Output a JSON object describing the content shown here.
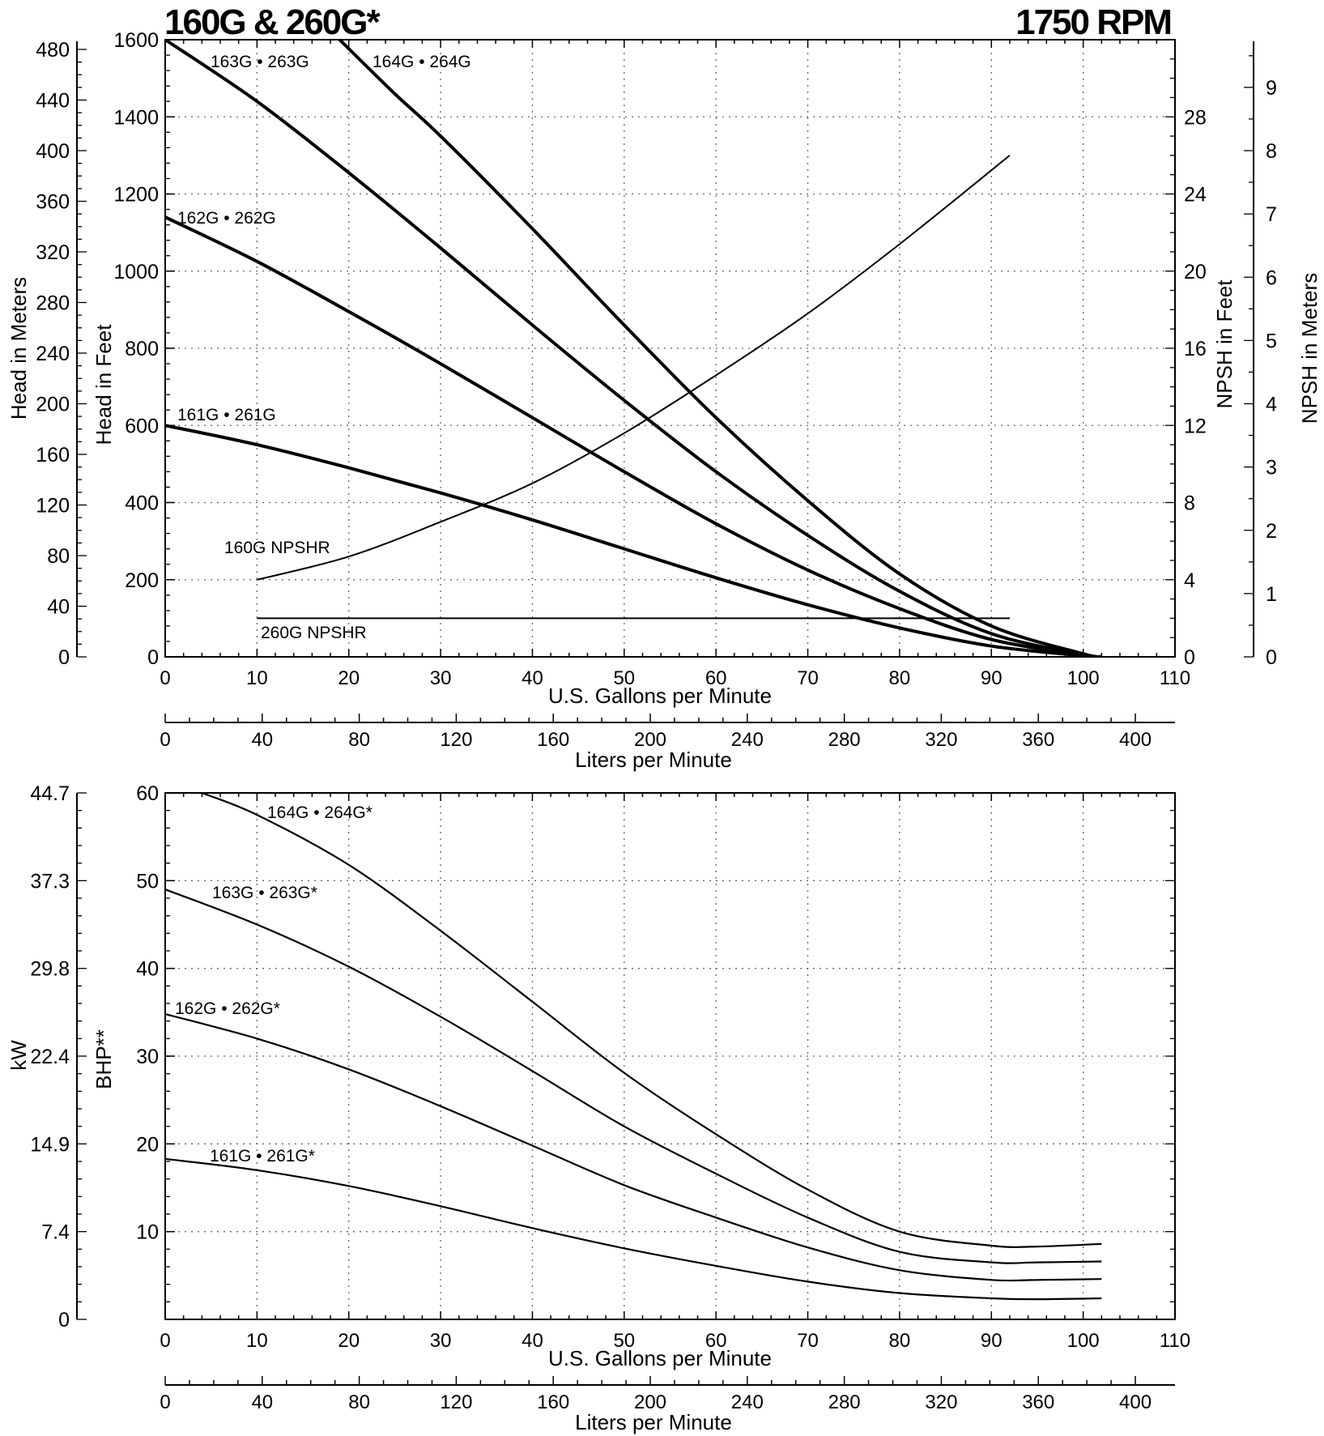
{
  "title_left": "160G & 260G*",
  "title_right": "1750 RPM",
  "chart_data": [
    {
      "type": "line",
      "name": "head-chart",
      "xlabel": "U.S. Gallons per Minute",
      "x2label": "Liters per Minute",
      "ylabel": "Head in Feet",
      "y_meters_label": "Head in Meters",
      "y_right_label": "NPSH in Feet",
      "y_right2_label": "NPSH in Meters",
      "xlim": [
        0,
        110
      ],
      "ylim": [
        0,
        1600
      ],
      "x_ticks": [
        0,
        10,
        20,
        30,
        40,
        50,
        60,
        70,
        80,
        90,
        100,
        110
      ],
      "y_ticks": [
        0,
        200,
        400,
        600,
        800,
        1000,
        1200,
        1400,
        1600
      ],
      "y_meters_ticks": [
        0,
        40,
        80,
        120,
        160,
        200,
        240,
        280,
        320,
        360,
        400,
        440,
        480
      ],
      "npsh_feet_ticks": [
        0,
        4,
        8,
        12,
        16,
        20,
        24,
        28
      ],
      "npsh_meters_ticks": [
        0,
        1,
        2,
        3,
        4,
        5,
        6,
        7,
        8,
        9
      ],
      "lpm_ticks": [
        0,
        40,
        80,
        120,
        160,
        200,
        240,
        280,
        320,
        360,
        400
      ],
      "grid": true,
      "series": [
        {
          "name": "161G • 261G",
          "weight": "heavy",
          "x": [
            0,
            10,
            20,
            30,
            40,
            50,
            60,
            70,
            80,
            90,
            100,
            102
          ],
          "y": [
            600,
            550,
            490,
            425,
            355,
            280,
            205,
            135,
            75,
            28,
            3,
            0
          ]
        },
        {
          "name": "162G • 262G",
          "weight": "heavy",
          "x": [
            0,
            10,
            20,
            30,
            40,
            50,
            60,
            70,
            80,
            90,
            100,
            102
          ],
          "y": [
            1140,
            1025,
            895,
            760,
            620,
            480,
            345,
            225,
            125,
            45,
            5,
            0
          ]
        },
        {
          "name": "163G • 263G",
          "weight": "heavy",
          "x": [
            0,
            10,
            20,
            30,
            40,
            50,
            60,
            70,
            80,
            90,
            100,
            102
          ],
          "y": [
            1600,
            1440,
            1255,
            1060,
            860,
            665,
            480,
            315,
            170,
            60,
            6,
            0
          ]
        },
        {
          "name": "164G • 264G",
          "weight": "heavy",
          "x": [
            19,
            25,
            30,
            40,
            50,
            60,
            70,
            80,
            90,
            100,
            102
          ],
          "y": [
            1600,
            1460,
            1350,
            1110,
            860,
            620,
            405,
            215,
            80,
            8,
            0
          ]
        },
        {
          "name": "160G NPSHR",
          "weight": "light",
          "axis": "npsh_feet",
          "x": [
            10,
            20,
            30,
            40,
            50,
            60,
            70,
            80,
            92
          ],
          "y": [
            4,
            5.2,
            7,
            9,
            11.6,
            14.6,
            17.8,
            21.4,
            26
          ]
        },
        {
          "name": "260G NPSHR",
          "weight": "light",
          "axis": "npsh_feet",
          "x": [
            10,
            92
          ],
          "y": [
            2,
            2
          ]
        }
      ]
    },
    {
      "type": "line",
      "name": "power-chart",
      "xlabel": "U.S. Gallons per Minute",
      "x2label": "Liters per Minute",
      "ylabel": "BHP**",
      "y_kw_label": "kW",
      "xlim": [
        0,
        110
      ],
      "ylim": [
        0,
        60
      ],
      "x_ticks": [
        0,
        10,
        20,
        30,
        40,
        50,
        60,
        70,
        80,
        90,
        100,
        110
      ],
      "y_ticks": [
        10,
        20,
        30,
        40,
        50,
        60
      ],
      "kw_ticks": [
        "0",
        "7.4",
        "14.9",
        "22.4",
        "29.8",
        "37.3",
        "44.7"
      ],
      "lpm_ticks": [
        0,
        40,
        80,
        120,
        160,
        200,
        240,
        280,
        320,
        360,
        400
      ],
      "grid": true,
      "series": [
        {
          "name": "161G • 261G*",
          "x": [
            0,
            10,
            20,
            30,
            40,
            50,
            60,
            70,
            80,
            90,
            95,
            102
          ],
          "y": [
            18.3,
            17,
            15.2,
            12.9,
            10.4,
            8.1,
            6.1,
            4.3,
            3,
            2.4,
            2.3,
            2.4
          ]
        },
        {
          "name": "162G • 262G*",
          "x": [
            0,
            10,
            20,
            30,
            40,
            50,
            60,
            70,
            80,
            90,
            95,
            102
          ],
          "y": [
            34.8,
            32,
            28.5,
            24.3,
            19.8,
            15.3,
            11.6,
            8.2,
            5.6,
            4.5,
            4.5,
            4.6
          ]
        },
        {
          "name": "163G • 263G*",
          "x": [
            0,
            10,
            20,
            30,
            40,
            50,
            60,
            70,
            80,
            90,
            95,
            102
          ],
          "y": [
            49,
            45,
            40.2,
            34.5,
            28.3,
            22,
            16.6,
            11.6,
            7.7,
            6.5,
            6.5,
            6.6
          ]
        },
        {
          "name": "164G • 264G*",
          "x": [
            4,
            10,
            20,
            30,
            40,
            50,
            60,
            70,
            80,
            90,
            95,
            102
          ],
          "y": [
            60,
            57.5,
            51.8,
            44.3,
            36.2,
            28.1,
            21.1,
            14.8,
            10,
            8.4,
            8.3,
            8.6
          ]
        }
      ]
    }
  ]
}
